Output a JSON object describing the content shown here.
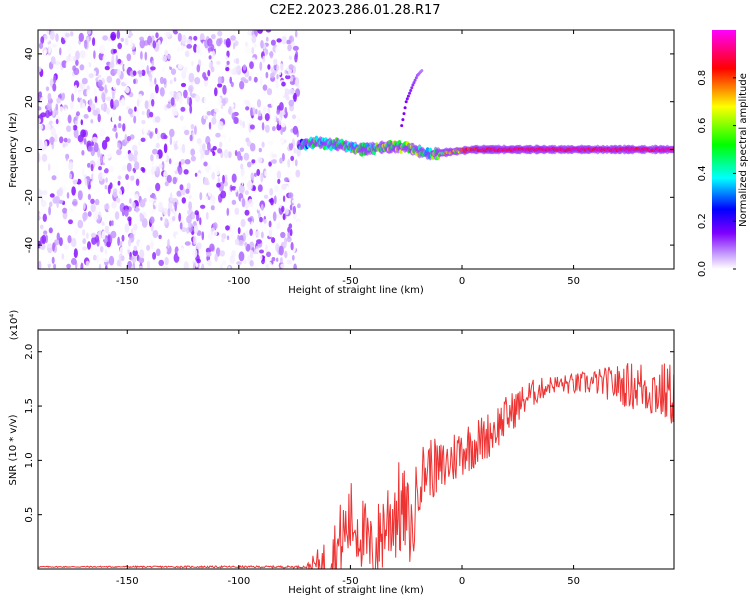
{
  "title": "C2E2.2023.286.01.28.R17",
  "chart_data": [
    {
      "type": "heatmap",
      "xlabel": "Height of straight line (km)",
      "ylabel": "Frequency (Hz)",
      "xlim": [
        -190,
        95
      ],
      "ylim": [
        -50,
        50
      ],
      "xticks": [
        -150,
        -100,
        -50,
        0,
        50
      ],
      "yticks": [
        -40,
        -20,
        0,
        20,
        40
      ],
      "colorbar": {
        "label": "Normalized spectral amplitude",
        "range": [
          0.0,
          1.0
        ],
        "ticks": [
          "0.0",
          "0.2",
          "0.4",
          "0.6",
          "0.8"
        ],
        "colormap": [
          "#ffffff",
          "#7f00ff",
          "#0000ff",
          "#00ffff",
          "#00ff00",
          "#ffff00",
          "#ff0000",
          "#ff00ff"
        ]
      },
      "noise_region": {
        "x": [
          -190,
          -73
        ],
        "freq": [
          -50,
          50
        ],
        "amplitude_range": [
          0.0,
          0.15
        ]
      },
      "signal_track": {
        "x": [
          -73,
          -65,
          -55,
          -45,
          -35,
          -25,
          -15,
          -5,
          5,
          20,
          40,
          60,
          80,
          95
        ],
        "freq": [
          2,
          3,
          2,
          0,
          1,
          1,
          -2,
          -1,
          0,
          0,
          0,
          0,
          0,
          0
        ],
        "amplitude": [
          0.5,
          0.6,
          0.65,
          0.6,
          0.7,
          0.75,
          0.6,
          0.8,
          0.9,
          0.95,
          0.95,
          0.95,
          0.95,
          0.95
        ]
      },
      "side_branch": {
        "x": [
          -27,
          -25,
          -22,
          -20,
          -18
        ],
        "freq": [
          10,
          20,
          27,
          31,
          33
        ],
        "amplitude": [
          0.15,
          0.15,
          0.12,
          0.1,
          0.08
        ]
      }
    },
    {
      "type": "line",
      "xlabel": "Height of straight line (km)",
      "ylabel": "SNR (10 * v/v)",
      "y_multiplier": "(x10⁴)",
      "xlim": [
        -190,
        95
      ],
      "ylim": [
        0,
        2.2
      ],
      "xticks": [
        -150,
        -100,
        -50,
        0,
        50
      ],
      "yticks": [
        0.5,
        1.0,
        1.5,
        2.0
      ],
      "series": [
        {
          "color": "#ee3333",
          "trend": {
            "x": [
              -190,
              -70,
              -60,
              -55,
              -50,
              -45,
              -40,
              -35,
              -30,
              -25,
              -22,
              -20,
              -15,
              -10,
              -5,
              0,
              10,
              20,
              25,
              30,
              40,
              50,
              60,
              70,
              80,
              95
            ],
            "y": [
              0.02,
              0.02,
              0.05,
              0.2,
              0.45,
              0.35,
              0.1,
              0.4,
              0.55,
              0.5,
              0.3,
              0.8,
              0.95,
              0.9,
              1.0,
              1.1,
              1.2,
              1.4,
              1.5,
              1.6,
              1.7,
              1.7,
              1.72,
              1.7,
              1.68,
              1.6
            ]
          },
          "noise_amplitude": {
            "x": [
              -190,
              -70,
              -55,
              -40,
              -30,
              -20,
              0,
              20,
              40,
              60,
              80,
              95
            ],
            "y": [
              0.005,
              0.01,
              0.4,
              0.35,
              0.5,
              0.3,
              0.25,
              0.2,
              0.08,
              0.12,
              0.25,
              0.3
            ]
          }
        }
      ]
    }
  ]
}
